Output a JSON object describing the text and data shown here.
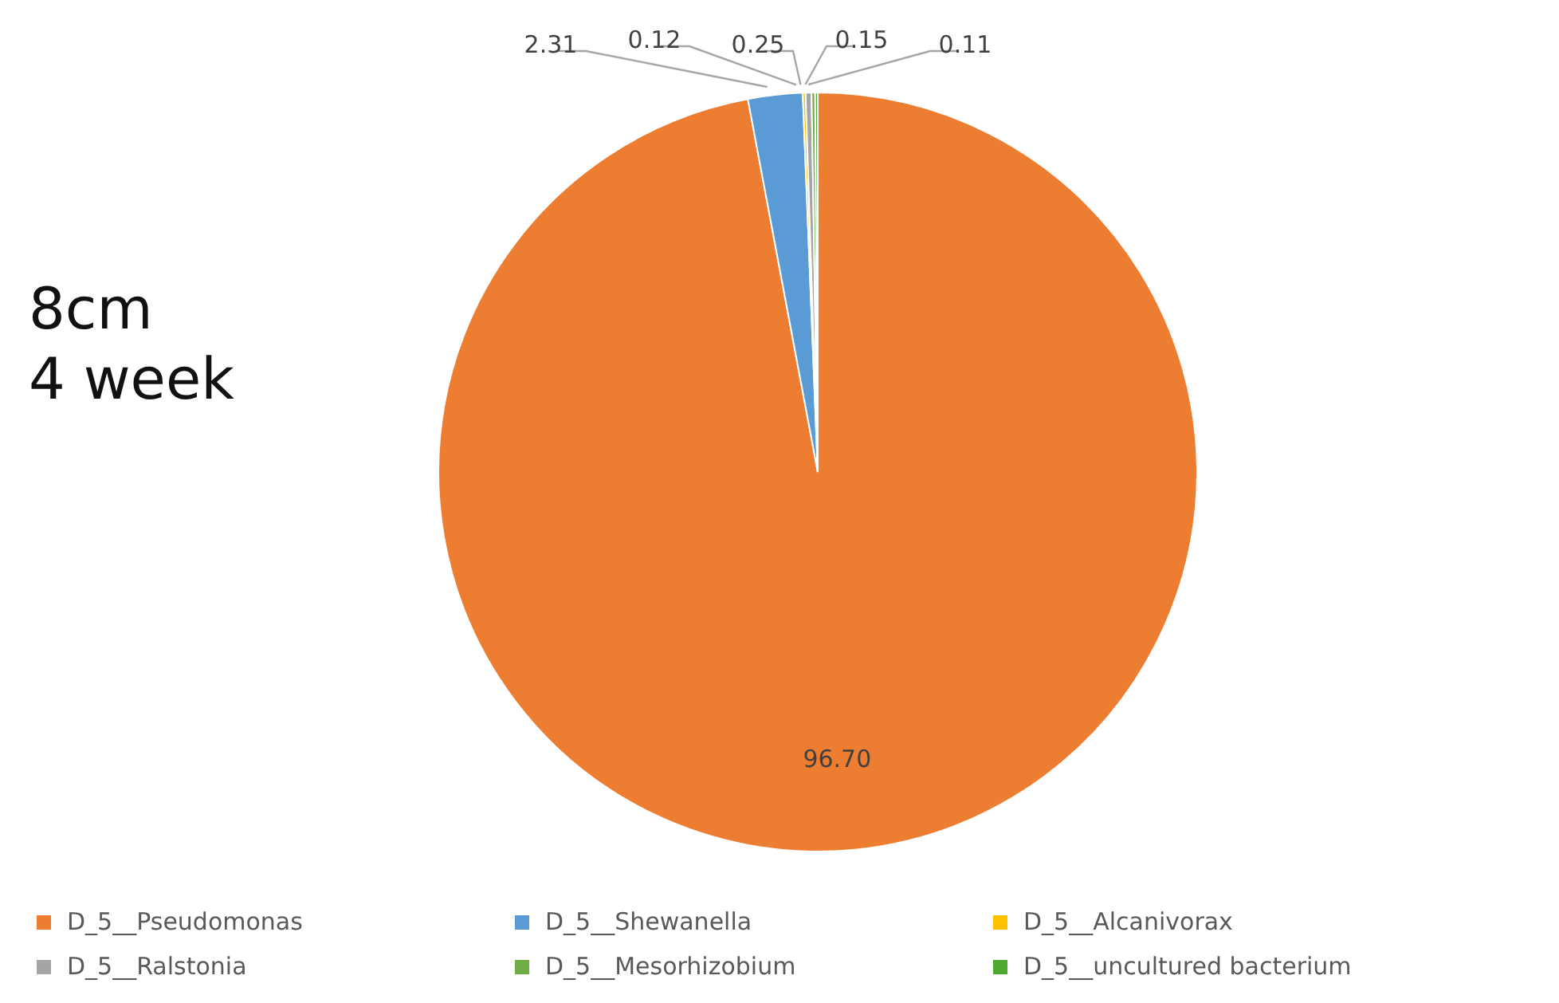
{
  "chart_data": {
    "type": "pie",
    "annotations": [
      "8cm",
      "4 week"
    ],
    "categories": [
      "D_5__Pseudomonas",
      "D_5__Shewanella",
      "D_5__Alcanivorax",
      "D_5__Ralstonia",
      "D_5__Mesorhizobium",
      "D_5__uncultured bacterium"
    ],
    "values": [
      96.7,
      2.31,
      0.12,
      0.25,
      0.15,
      0.11
    ],
    "colors": [
      "#ed7d31",
      "#5b9bd5",
      "#ffc000",
      "#a5a5a5",
      "#70ad47",
      "#4ea72e"
    ],
    "value_labels": [
      "96.70",
      "2.31",
      "0.12",
      "0.25",
      "0.15",
      "0.11"
    ],
    "legend": "bottom"
  }
}
